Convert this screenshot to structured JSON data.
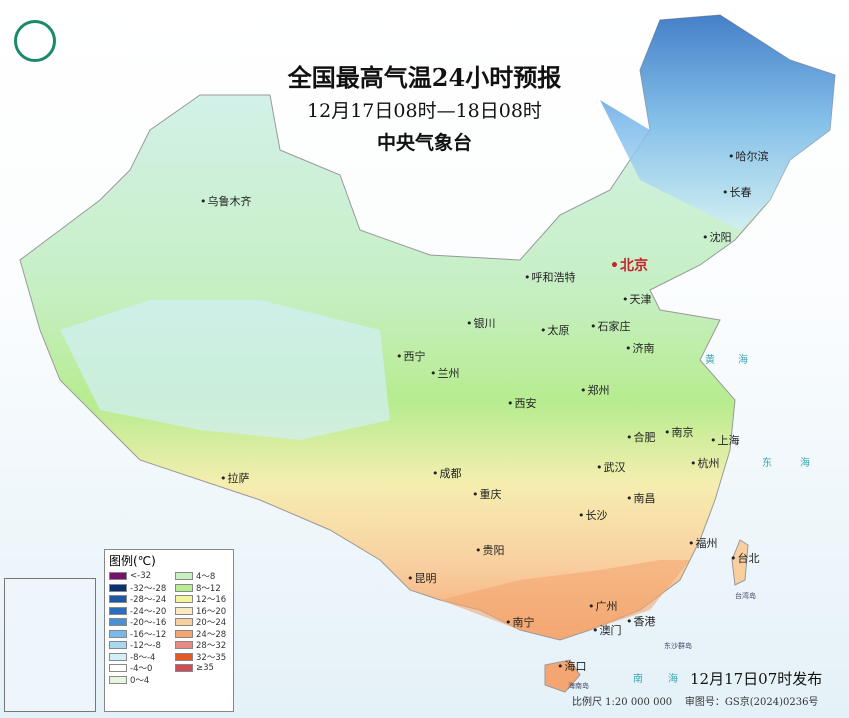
{
  "title": "全国最高气温24小时预报",
  "subtitle": "12月17日08时—18日08时",
  "agency": "中央气象台",
  "issued": "12月17日07时发布",
  "scale": "比例尺 1:20 000 000",
  "map_approval": "审图号：GS京(2024)0236号",
  "legend": {
    "title": "图例(℃)",
    "items": [
      {
        "label": "<-32",
        "color": "#7b0f6e"
      },
      {
        "label": "-32～-28",
        "color": "#0b2f73"
      },
      {
        "label": "-28～-24",
        "color": "#1e58a5"
      },
      {
        "label": "-24～-20",
        "color": "#2b6cc0"
      },
      {
        "label": "-20～-16",
        "color": "#4a90d6"
      },
      {
        "label": "-16～-12",
        "color": "#79b8ea"
      },
      {
        "label": "-12～-8",
        "color": "#a6d8ef"
      },
      {
        "label": "-8～-4",
        "color": "#d2eff8"
      },
      {
        "label": "-4～0",
        "color": "#ffffff"
      },
      {
        "label": "0～4",
        "color": "#e6f6de"
      },
      {
        "label": "4～8",
        "color": "#c9efc0"
      },
      {
        "label": "8～12",
        "color": "#b7ec8f"
      },
      {
        "label": "12～16",
        "color": "#f5f5a0"
      },
      {
        "label": "16～20",
        "color": "#fbe9c2"
      },
      {
        "label": "20～24",
        "color": "#f9cfa0"
      },
      {
        "label": "24～28",
        "color": "#f3a672"
      },
      {
        "label": "28～32",
        "color": "#ea8a86"
      },
      {
        "label": "32～35",
        "color": "#e25a26"
      },
      {
        "label": "≥35",
        "color": "#cf4b55"
      }
    ]
  },
  "cities": {
    "harbin": "哈尔滨",
    "changchun": "长春",
    "shenyang": "沈阳",
    "urumqi": "乌鲁木齐",
    "hohhot": "呼和浩特",
    "beijing": "北京",
    "tianjin": "天津",
    "yinchuan": "银川",
    "taiyuan": "太原",
    "shijiazhuang": "石家庄",
    "jinan": "济南",
    "xining": "西宁",
    "lanzhou": "兰州",
    "zhengzhou": "郑州",
    "xian": "西安",
    "nanjing": "南京",
    "hefei": "合肥",
    "shanghai": "上海",
    "hangzhou": "杭州",
    "wuhan": "武汉",
    "lhasa": "拉萨",
    "chengdu": "成都",
    "chongqing": "重庆",
    "nanchang": "南昌",
    "changsha": "长沙",
    "fuzhou": "福州",
    "taipei": "台北",
    "guiyang": "贵阳",
    "kunming": "昆明",
    "nanning": "南宁",
    "guangzhou": "广州",
    "hongkong": "香港",
    "macau": "澳门",
    "haikou": "海口"
  },
  "seas": {
    "huang": "黄",
    "hai1": "海",
    "dong": "东",
    "hai2": "海",
    "nan": "南",
    "hai3": "海"
  },
  "islands": {
    "taiwan": "台湾岛",
    "dongsha": "东沙群岛",
    "hainan": "海南岛"
  }
}
